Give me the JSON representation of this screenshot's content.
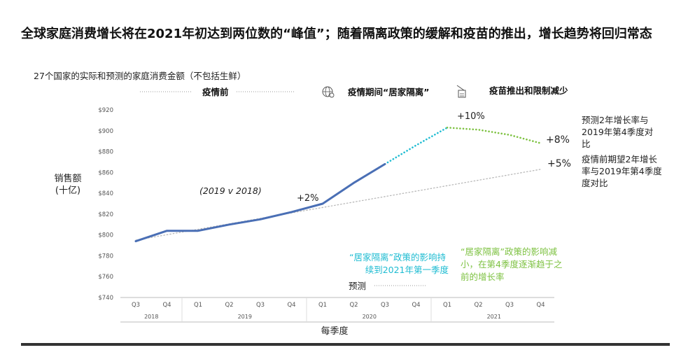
{
  "header": {
    "title": "全球家庭消费增长将在2021年初达到两位数的“峰值”；随着隔离政策的缓解和疫苗的推出，增长趋势将回归常态",
    "subtitle": "27个国家的实际和预测的家庭消费金额（不包括生鲜）"
  },
  "phases": {
    "pre": "疫情前",
    "lockdown": "疫情期间“居家隔离”",
    "vaccine": "疫苗推出和限制减少",
    "lockdown_icon": "globe-virus-icon",
    "vaccine_icon": "vaccine-icon"
  },
  "annotations": {
    "comparison": "(2019 v 2018)",
    "plus2": "+2%",
    "plus10": "+10%",
    "plus8": "+8%",
    "plus5": "+5%",
    "right_note_1": [
      "预测2年增长率与",
      "2019年第4季度对",
      "比"
    ],
    "right_note_2": [
      "疫情前期望2年增长",
      "率与2019年第4季度",
      "度对比"
    ],
    "cyan_note": [
      "“居家隔离”政策的影响持",
      "续到2021年第一季度"
    ],
    "green_note": [
      "“居家隔离”政策的影响减",
      "小，在第4季度逐渐趋于之",
      "前的增长率"
    ],
    "forecast": "预测"
  },
  "colors": {
    "actual": "#4a6fb5",
    "forecast_lockdown": "#1fbcd2",
    "forecast_recovery": "#7ec242",
    "pre_trend": "#b8b8b8",
    "cyan_text": "#1fbcd2",
    "green_text": "#7ec242"
  },
  "chart_data": {
    "type": "line",
    "title": "",
    "ylabel": [
      "销售额",
      "(十亿)"
    ],
    "xlabel": "每季度",
    "ylim": [
      740,
      920
    ],
    "yticks": [
      "$740",
      "$760",
      "$780",
      "$800",
      "$820",
      "$840",
      "$860",
      "$880",
      "$900",
      "$920"
    ],
    "categories": [
      "Q3",
      "Q4",
      "Q1",
      "Q2",
      "Q3",
      "Q4",
      "Q1",
      "Q2",
      "Q3",
      "Q4",
      "Q1",
      "Q2",
      "Q3",
      "Q4"
    ],
    "years": [
      {
        "label": "2018",
        "start": 0,
        "end": 1
      },
      {
        "label": "2019",
        "start": 2,
        "end": 5
      },
      {
        "label": "2020",
        "start": 6,
        "end": 9
      },
      {
        "label": "2021",
        "start": 10,
        "end": 13
      }
    ],
    "series": [
      {
        "key": "actual",
        "style": "solid",
        "points": [
          [
            0,
            794
          ],
          [
            1,
            804
          ],
          [
            2,
            804
          ],
          [
            3,
            810
          ],
          [
            4,
            815
          ],
          [
            5,
            822
          ],
          [
            6,
            830
          ],
          [
            7,
            850
          ],
          [
            8,
            868
          ]
        ]
      },
      {
        "key": "forecast_lockdown",
        "style": "dotted",
        "points": [
          [
            8,
            868
          ],
          [
            9,
            886
          ],
          [
            10,
            903
          ]
        ]
      },
      {
        "key": "forecast_recovery",
        "style": "dotted",
        "points": [
          [
            10,
            903
          ],
          [
            11,
            901
          ],
          [
            12,
            896
          ],
          [
            13,
            888
          ]
        ]
      },
      {
        "key": "pre_trend",
        "style": "dotted",
        "points": [
          [
            0,
            795
          ],
          [
            13,
            863
          ]
        ]
      }
    ]
  }
}
